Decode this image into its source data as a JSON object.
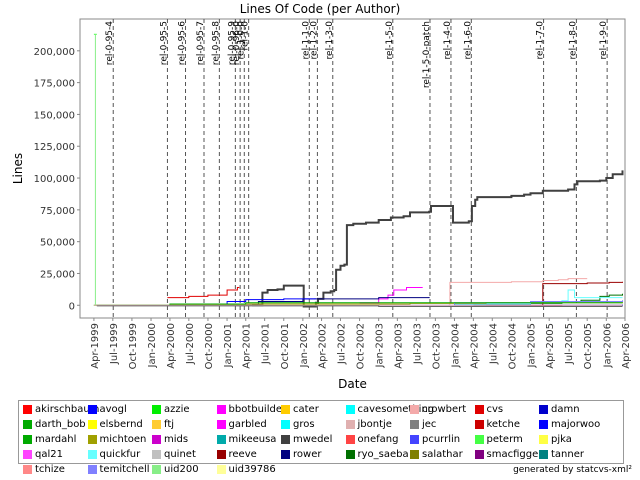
{
  "chart_data": {
    "type": "line",
    "title": "Lines Of Code (per Author)",
    "xlabel": "Date",
    "ylabel": "Lines",
    "ylim": [
      -10000,
      225000
    ],
    "xlim": [
      "1999-01-24",
      "2006-04-01"
    ],
    "y_ticks": [
      {
        "v": 0,
        "label": "0"
      },
      {
        "v": 25000,
        "label": "25,000"
      },
      {
        "v": 50000,
        "label": "50,000"
      },
      {
        "v": 75000,
        "label": "75,000"
      },
      {
        "v": 100000,
        "label": "100,000"
      },
      {
        "v": 125000,
        "label": "125,000"
      },
      {
        "v": 150000,
        "label": "150,000"
      },
      {
        "v": 175000,
        "label": "175,000"
      },
      {
        "v": 200000,
        "label": "200,000"
      }
    ],
    "x_ticks": [
      {
        "d": "1999-04-01",
        "label": "Apr-1999"
      },
      {
        "d": "1999-07-01",
        "label": "Jul-1999"
      },
      {
        "d": "1999-10-01",
        "label": "Oct-1999"
      },
      {
        "d": "2000-01-01",
        "label": "Jan-2000"
      },
      {
        "d": "2000-04-01",
        "label": "Apr-2000"
      },
      {
        "d": "2000-07-01",
        "label": "Jul-2000"
      },
      {
        "d": "2000-10-01",
        "label": "Oct-2000"
      },
      {
        "d": "2001-01-01",
        "label": "Jan-2001"
      },
      {
        "d": "2001-04-01",
        "label": "Apr-2001"
      },
      {
        "d": "2001-07-01",
        "label": "Jul-2001"
      },
      {
        "d": "2001-10-01",
        "label": "Oct-2001"
      },
      {
        "d": "2002-01-01",
        "label": "Jan-2002"
      },
      {
        "d": "2002-04-01",
        "label": "Apr-2002"
      },
      {
        "d": "2002-07-01",
        "label": "Jul-2002"
      },
      {
        "d": "2002-10-01",
        "label": "Oct-2002"
      },
      {
        "d": "2003-01-01",
        "label": "Jan-2003"
      },
      {
        "d": "2003-04-01",
        "label": "Apr-2003"
      },
      {
        "d": "2003-07-01",
        "label": "Jul-2003"
      },
      {
        "d": "2003-10-01",
        "label": "Oct-2003"
      },
      {
        "d": "2004-01-01",
        "label": "Jan-2004"
      },
      {
        "d": "2004-04-01",
        "label": "Apr-2004"
      },
      {
        "d": "2004-07-01",
        "label": "Jul-2004"
      },
      {
        "d": "2004-10-01",
        "label": "Oct-2004"
      },
      {
        "d": "2005-01-01",
        "label": "Jan-2005"
      },
      {
        "d": "2005-04-01",
        "label": "Apr-2005"
      },
      {
        "d": "2005-07-01",
        "label": "Jul-2005"
      },
      {
        "d": "2005-10-01",
        "label": "Oct-2005"
      },
      {
        "d": "2006-01-01",
        "label": "Jan-2006"
      },
      {
        "d": "2006-04-01",
        "label": "Apr-2006"
      }
    ],
    "releases": [
      {
        "label": "rel-0-95-4",
        "date": "1999-07-03"
      },
      {
        "label": "rel-0-95-5",
        "date": "2000-03-20"
      },
      {
        "label": "rel-0-95-6",
        "date": "2000-06-15"
      },
      {
        "label": "rel-0-95-7",
        "date": "2000-09-12"
      },
      {
        "label": "rel-0-95-8",
        "date": "2000-11-25"
      },
      {
        "label": "rel-0-95-9",
        "date": "2001-02-10"
      },
      {
        "label": "rel-0-96-0",
        "date": "2001-03-05"
      },
      {
        "label": "rel-1-0-0",
        "date": "2001-03-25"
      },
      {
        "label": "rel-1-0",
        "date": "2001-04-15"
      },
      {
        "label": "rel-1-1-0",
        "date": "2002-02-01"
      },
      {
        "label": "rel-1-2-0",
        "date": "2002-03-12"
      },
      {
        "label": "rel-1-3-0",
        "date": "2002-05-25"
      },
      {
        "label": "rel-1-5-0",
        "date": "2003-03-10"
      },
      {
        "label": "rel-1-5-0-patch",
        "date": "2003-09-05"
      },
      {
        "label": "rel-1-4-0",
        "date": "2003-12-15"
      },
      {
        "label": "rel-1-6-0",
        "date": "2004-03-22"
      },
      {
        "label": "rel-1-7-0",
        "date": "2005-03-05"
      },
      {
        "label": "rel-1-8-0",
        "date": "2005-08-10"
      },
      {
        "label": "rel-1-9-0",
        "date": "2006-01-05"
      }
    ],
    "series": [
      {
        "name": "mwedel",
        "color": "#404040",
        "width": 2,
        "points": [
          [
            "2001-05-01",
            0
          ],
          [
            "2001-06-20",
            10000
          ],
          [
            "2001-07-15",
            12000
          ],
          [
            "2001-09-01",
            12500
          ],
          [
            "2001-10-01",
            15500
          ],
          [
            "2001-12-20",
            15500
          ],
          [
            "2002-01-05",
            -1000
          ],
          [
            "2002-03-05",
            2000
          ],
          [
            "2002-03-15",
            5000
          ],
          [
            "2002-04-10",
            10000
          ],
          [
            "2002-05-15",
            11000
          ],
          [
            "2002-06-01",
            12000
          ],
          [
            "2002-06-10",
            28000
          ],
          [
            "2002-07-01",
            31000
          ],
          [
            "2002-07-20",
            32000
          ],
          [
            "2002-08-01",
            63000
          ],
          [
            "2002-09-01",
            64000
          ],
          [
            "2002-11-01",
            65000
          ],
          [
            "2003-01-01",
            67000
          ],
          [
            "2003-03-01",
            69000
          ],
          [
            "2003-05-01",
            70000
          ],
          [
            "2003-06-01",
            73000
          ],
          [
            "2003-09-01",
            73500
          ],
          [
            "2003-09-10",
            78000
          ],
          [
            "2003-12-15",
            78000
          ],
          [
            "2003-12-25",
            65000
          ],
          [
            "2004-03-10",
            66000
          ],
          [
            "2004-03-25",
            78000
          ],
          [
            "2004-04-10",
            83000
          ],
          [
            "2004-04-20",
            85000
          ],
          [
            "2004-08-01",
            85000
          ],
          [
            "2004-10-01",
            86000
          ],
          [
            "2004-12-01",
            87000
          ],
          [
            "2005-01-01",
            88000
          ],
          [
            "2005-03-01",
            90000
          ],
          [
            "2005-07-01",
            91000
          ],
          [
            "2005-08-01",
            95000
          ],
          [
            "2005-08-15",
            97500
          ],
          [
            "2005-12-01",
            98000
          ],
          [
            "2006-01-01",
            100000
          ],
          [
            "2006-02-01",
            103000
          ],
          [
            "2006-03-20",
            106000
          ]
        ]
      },
      {
        "name": "crowbert",
        "color": "#f4aaaa",
        "width": 1,
        "points": [
          [
            "2003-12-01",
            0
          ],
          [
            "2003-12-10",
            18000
          ],
          [
            "2004-10-01",
            18500
          ],
          [
            "2005-03-01",
            19500
          ],
          [
            "2005-05-15",
            20000
          ],
          [
            "2005-07-01",
            21000
          ],
          [
            "2005-10-01",
            21000
          ]
        ]
      },
      {
        "name": "cvs",
        "color": "#e00000",
        "width": 1,
        "points": [
          [
            "2000-03-20",
            6000
          ],
          [
            "2000-07-01",
            7000
          ],
          [
            "2000-10-01",
            8000
          ],
          [
            "2001-01-01",
            12000
          ],
          [
            "2001-02-20",
            14000
          ],
          [
            "2001-03-01",
            14000
          ]
        ]
      },
      {
        "name": "ryo_saeba",
        "color": "#007000",
        "width": 1,
        "points": [
          [
            "2004-04-01",
            0
          ],
          [
            "2005-01-01",
            1500
          ],
          [
            "2005-06-01",
            3000
          ],
          [
            "2005-09-01",
            4000
          ],
          [
            "2005-12-01",
            7000
          ],
          [
            "2006-01-15",
            8000
          ],
          [
            "2006-03-20",
            9000
          ]
        ]
      },
      {
        "name": "garbled",
        "color": "#ff00ff",
        "width": 1,
        "points": [
          [
            "2002-10-01",
            2000
          ],
          [
            "2003-01-01",
            5000
          ],
          [
            "2003-02-15",
            8000
          ],
          [
            "2003-03-15",
            12000
          ],
          [
            "2003-05-15",
            14000
          ],
          [
            "2003-08-01",
            14000
          ]
        ]
      },
      {
        "name": "reeve",
        "color": "#990000",
        "width": 1,
        "points": [
          [
            "2005-02-15",
            0
          ],
          [
            "2005-03-01",
            17000
          ],
          [
            "2005-10-01",
            17500
          ],
          [
            "2006-01-15",
            18000
          ],
          [
            "2006-03-20",
            18500
          ]
        ]
      },
      {
        "name": "rower",
        "color": "#000080",
        "width": 1,
        "points": [
          [
            "2001-01-01",
            0
          ],
          [
            "2001-06-01",
            3000
          ],
          [
            "2002-01-01",
            5000
          ],
          [
            "2003-01-01",
            6000
          ],
          [
            "2003-09-01",
            6500
          ]
        ]
      },
      {
        "name": "avogl",
        "color": "#0000ff",
        "width": 1,
        "points": [
          [
            "2000-10-01",
            1000
          ],
          [
            "2001-01-01",
            3000
          ],
          [
            "2001-04-01",
            4500
          ],
          [
            "2001-10-01",
            5000
          ],
          [
            "2002-03-01",
            5500
          ]
        ]
      },
      {
        "name": "quickfur",
        "color": "#66ffff",
        "width": 1,
        "points": [
          [
            "2004-01-01",
            1000
          ],
          [
            "2005-01-01",
            2000
          ],
          [
            "2005-06-01",
            3500
          ],
          [
            "2005-07-01",
            12000
          ],
          [
            "2005-08-01",
            6000
          ],
          [
            "2006-03-20",
            6000
          ]
        ]
      },
      {
        "name": "michtoen",
        "color": "#a0a000",
        "width": 1,
        "points": [
          [
            "1999-04-01",
            0
          ],
          [
            "2000-04-01",
            500
          ],
          [
            "2001-04-01",
            1000
          ],
          [
            "2002-06-01",
            1000
          ],
          [
            "2003-06-01",
            1500
          ],
          [
            "2004-06-01",
            2000
          ],
          [
            "2006-03-20",
            2500
          ]
        ]
      },
      {
        "name": "temitchell",
        "color": "#8080ff",
        "width": 1,
        "points": [
          [
            "2003-01-01",
            0
          ],
          [
            "2004-01-01",
            2000
          ],
          [
            "2005-01-01",
            3000
          ],
          [
            "2006-03-20",
            4000
          ]
        ]
      },
      {
        "name": "akirschbaum",
        "color": "#ff0000",
        "width": 1,
        "points": [
          [
            "2004-06-01",
            0
          ],
          [
            "2005-01-01",
            -500
          ],
          [
            "2005-06-01",
            -1000
          ],
          [
            "2006-03-20",
            -1000
          ]
        ]
      },
      {
        "name": "damn",
        "color": "#0000cc",
        "width": 1,
        "points": [
          [
            "2004-01-01",
            0
          ],
          [
            "2006-03-20",
            500
          ]
        ]
      },
      {
        "name": "mardahl",
        "color": "#00aa00",
        "width": 1,
        "points": [
          [
            "1999-04-01",
            0
          ],
          [
            "2000-04-01",
            1000
          ],
          [
            "2001-04-01",
            2000
          ],
          [
            "2006-03-20",
            2000
          ]
        ]
      },
      {
        "name": "peterm",
        "color": "#44ff44",
        "width": 1,
        "points": [
          [
            "1999-04-01",
            213000
          ],
          [
            "1999-04-15",
            213000
          ]
        ]
      },
      {
        "name": "uid200",
        "color": "#88ee88",
        "width": 1,
        "points": [
          [
            "1999-04-01",
            0
          ],
          [
            "1999-04-08",
            213000
          ]
        ]
      },
      {
        "name": "jbontje",
        "color": "#e0b0b0",
        "width": 1,
        "points": [
          [
            "1999-04-01",
            0
          ],
          [
            "2006-03-20",
            0
          ]
        ]
      },
      {
        "name": "jec",
        "color": "#666666",
        "width": 1,
        "points": [
          [
            "1999-04-15",
            -500
          ],
          [
            "2003-01-01",
            -1000
          ],
          [
            "2006-03-20",
            -1000
          ]
        ]
      }
    ]
  },
  "legend": [
    {
      "name": "akirschbaum",
      "color": "#ff0000"
    },
    {
      "name": "avogl",
      "color": "#0000ff"
    },
    {
      "name": "azzie",
      "color": "#00ee00"
    },
    {
      "name": "bbotbuilder",
      "color": "#ff00ff"
    },
    {
      "name": "cater",
      "color": "#ffcc00"
    },
    {
      "name": "cavesomething",
      "color": "#00ffff"
    },
    {
      "name": "crowbert",
      "color": "#f4aaaa"
    },
    {
      "name": "cvs",
      "color": "#e00000"
    },
    {
      "name": "damn",
      "color": "#0000cc"
    },
    {
      "name": "darth_bob",
      "color": "#00aa00"
    },
    {
      "name": "elsbernd",
      "color": "#ffff00"
    },
    {
      "name": "ftj",
      "color": "#ffcc33"
    },
    {
      "name": "garbled",
      "color": "#ff00ff"
    },
    {
      "name": "gros",
      "color": "#00ffff"
    },
    {
      "name": "jbontje",
      "color": "#e0b0b0"
    },
    {
      "name": "jec",
      "color": "#808080"
    },
    {
      "name": "ketche",
      "color": "#cc0000"
    },
    {
      "name": "majorwoo",
      "color": "#0000ff"
    },
    {
      "name": "mardahl",
      "color": "#00aa00"
    },
    {
      "name": "michtoen",
      "color": "#a0a000"
    },
    {
      "name": "mids",
      "color": "#cc00cc"
    },
    {
      "name": "mikeeusa",
      "color": "#00aaaa"
    },
    {
      "name": "mwedel",
      "color": "#404040"
    },
    {
      "name": "onefang",
      "color": "#ff4444"
    },
    {
      "name": "pcurrlin",
      "color": "#4444ff"
    },
    {
      "name": "peterm",
      "color": "#44ff44"
    },
    {
      "name": "pjka",
      "color": "#ffff44"
    },
    {
      "name": "qal21",
      "color": "#ff44ff"
    },
    {
      "name": "quickfur",
      "color": "#66ffff"
    },
    {
      "name": "quinet",
      "color": "#c0c0c0"
    },
    {
      "name": "reeve",
      "color": "#990000"
    },
    {
      "name": "rower",
      "color": "#000080"
    },
    {
      "name": "ryo_saeba",
      "color": "#007000"
    },
    {
      "name": "salathar",
      "color": "#808000"
    },
    {
      "name": "smacfiggen",
      "color": "#800080"
    },
    {
      "name": "tanner",
      "color": "#008080"
    },
    {
      "name": "tchize",
      "color": "#ff8888"
    },
    {
      "name": "temitchell",
      "color": "#8080ff"
    },
    {
      "name": "uid200",
      "color": "#88ee88"
    },
    {
      "name": "uid39786",
      "color": "#ffff99"
    }
  ],
  "footer": "generated by statcvs-xml²"
}
